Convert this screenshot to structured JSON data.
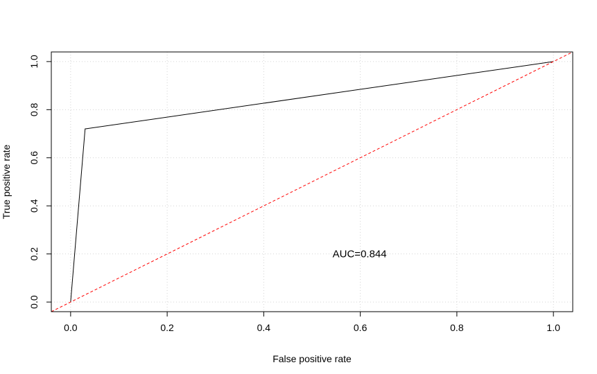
{
  "chart_data": {
    "type": "line",
    "title": "",
    "xlabel": "False positive rate",
    "ylabel": "True positive rate",
    "xlim": [
      -0.04,
      1.04
    ],
    "ylim": [
      -0.04,
      1.04
    ],
    "grid": true,
    "x_ticks": [
      0.0,
      0.2,
      0.4,
      0.6,
      0.8,
      1.0
    ],
    "x_tick_labels": [
      "0.0",
      "0.2",
      "0.4",
      "0.6",
      "0.8",
      "1.0"
    ],
    "y_ticks": [
      0.0,
      0.2,
      0.4,
      0.6,
      0.8,
      1.0
    ],
    "y_tick_labels": [
      "0.0",
      "0.2",
      "0.4",
      "0.6",
      "0.8",
      "1.0"
    ],
    "series": [
      {
        "x": [
          0.0,
          0.03,
          1.0
        ],
        "y": [
          0.0,
          0.72,
          1.0
        ],
        "color": "#000000",
        "style": "solid"
      },
      {
        "x": [
          -0.04,
          1.04
        ],
        "y": [
          -0.04,
          1.04
        ],
        "color": "#ff0000",
        "style": "dashed"
      }
    ],
    "annotations": [
      {
        "text": "AUC=0.844",
        "x": 0.6,
        "y": 0.2
      }
    ]
  }
}
